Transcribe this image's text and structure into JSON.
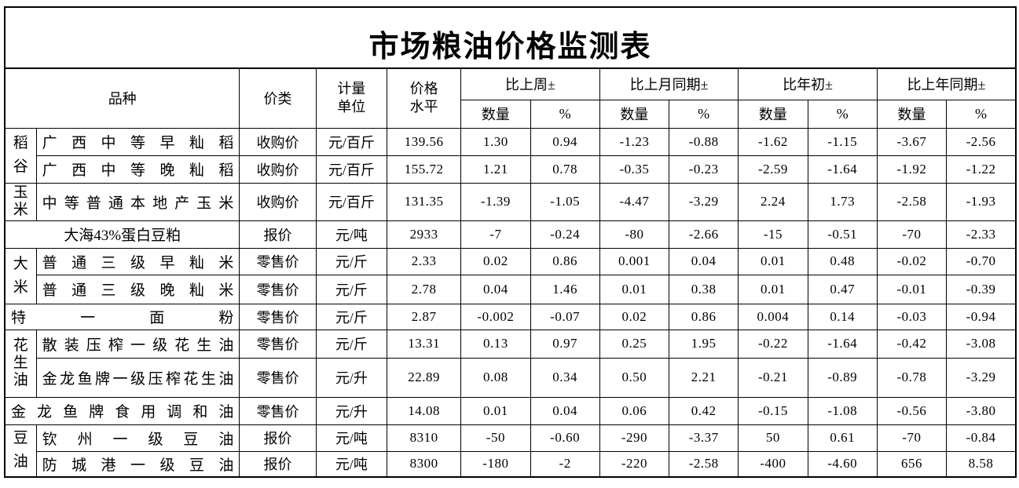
{
  "title": "市场粮油价格监测表",
  "header": {
    "variety": "品种",
    "price_type": "价类",
    "unit_lines": [
      "计量",
      "单位"
    ],
    "level_lines": [
      "价格",
      "水平"
    ],
    "compare_groups": [
      "比上周±",
      "比上月同期±",
      "比年初±",
      "比上年同期±"
    ],
    "qty": "数量",
    "pct": "%"
  },
  "rows": [
    {
      "group": "稻谷",
      "name": "广西中等早籼稻",
      "price_type": "收购价",
      "unit": "元/百斤",
      "level": "139.56",
      "v": [
        "1.30",
        "0.94",
        "-1.23",
        "-0.88",
        "-1.62",
        "-1.15",
        "-3.67",
        "-2.56"
      ]
    },
    {
      "name": "广西中等晚籼稻",
      "price_type": "收购价",
      "unit": "元/百斤",
      "level": "155.72",
      "v": [
        "1.21",
        "0.78",
        "-0.35",
        "-0.23",
        "-2.59",
        "-1.64",
        "-1.92",
        "-1.22"
      ]
    },
    {
      "group": "玉米",
      "name": "中等普通本地产玉米",
      "price_type": "收购价",
      "unit": "元/百斤",
      "level": "131.35",
      "v": [
        "-1.39",
        "-1.05",
        "-4.47",
        "-3.29",
        "2.24",
        "1.73",
        "-2.58",
        "-1.93"
      ]
    },
    {
      "name": "大海43%蛋白豆粕",
      "price_type": "报价",
      "unit": "元/吨",
      "level": "2933",
      "v": [
        "-7",
        "-0.24",
        "-80",
        "-2.66",
        "-15",
        "-0.51",
        "-70",
        "-2.33"
      ]
    },
    {
      "group": "大米",
      "name": "普通三级早籼米",
      "price_type": "零售价",
      "unit": "元/斤",
      "level": "2.33",
      "v": [
        "0.02",
        "0.86",
        "0.001",
        "0.04",
        "0.01",
        "0.48",
        "-0.02",
        "-0.70"
      ]
    },
    {
      "name": "普通三级晚籼米",
      "price_type": "零售价",
      "unit": "元/斤",
      "level": "2.78",
      "v": [
        "0.04",
        "1.46",
        "0.01",
        "0.38",
        "0.01",
        "0.47",
        "-0.01",
        "-0.39"
      ]
    },
    {
      "name": "特一面粉",
      "price_type": "零售价",
      "unit": "元/斤",
      "level": "2.87",
      "v": [
        "-0.002",
        "-0.07",
        "0.02",
        "0.86",
        "0.004",
        "0.14",
        "-0.03",
        "-0.94"
      ]
    },
    {
      "group": "花生油",
      "name": "散装压榨一级花生油",
      "price_type": "零售价",
      "unit": "元/斤",
      "level": "13.31",
      "v": [
        "0.13",
        "0.97",
        "0.25",
        "1.95",
        "-0.22",
        "-1.64",
        "-0.42",
        "-3.08"
      ]
    },
    {
      "name": "金龙鱼牌一级压榨花生油",
      "price_type": "零售价",
      "unit": "元/升",
      "level": "22.89",
      "v": [
        "0.08",
        "0.34",
        "0.50",
        "2.21",
        "-0.21",
        "-0.89",
        "-0.78",
        "-3.29"
      ]
    },
    {
      "name": "金龙鱼牌食用调和油",
      "price_type": "零售价",
      "unit": "元/升",
      "level": "14.08",
      "v": [
        "0.01",
        "0.04",
        "0.06",
        "0.42",
        "-0.15",
        "-1.08",
        "-0.56",
        "-3.80"
      ]
    },
    {
      "group": "豆油",
      "name": "钦州一级豆油",
      "price_type": "报价",
      "unit": "元/吨",
      "level": "8310",
      "v": [
        "-50",
        "-0.60",
        "-290",
        "-3.37",
        "50",
        "0.61",
        "-70",
        "-0.84"
      ]
    },
    {
      "name": "防城港一级豆油",
      "price_type": "报价",
      "unit": "元/吨",
      "level": "8300",
      "v": [
        "-180",
        "-2",
        "-220",
        "-2.58",
        "-400",
        "-4.60",
        "656",
        "8.58"
      ]
    }
  ]
}
